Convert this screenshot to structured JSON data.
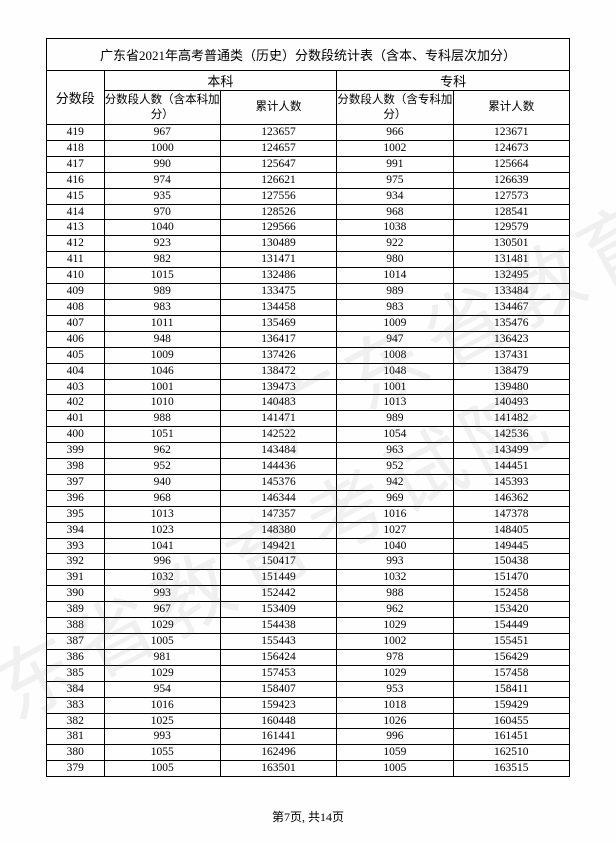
{
  "title": "广东省2021年高考普通类（历史）分数段统计表（含本、专科层次加分）",
  "headers": {
    "score": "分数段",
    "group_benke": "本科",
    "group_zhuanke": "专科",
    "benke_count": "分数段人数（含本科加分）",
    "benke_cum": "累计人数",
    "zhuanke_count": "分数段人数（含专科加分）",
    "zhuanke_cum": "累计人数"
  },
  "footer": "第7页, 共14页",
  "watermark": "广东省教育考试院",
  "colors": {
    "page_bg": "#fffefe",
    "border": "#000000",
    "text": "#000000",
    "watermark": "rgba(120,120,120,0.10)"
  },
  "table": {
    "type": "table",
    "col_widths_pct": [
      11,
      22.25,
      22.25,
      22.25,
      22.25
    ],
    "rows": [
      [
        "419",
        "967",
        "123657",
        "966",
        "123671"
      ],
      [
        "418",
        "1000",
        "124657",
        "1002",
        "124673"
      ],
      [
        "417",
        "990",
        "125647",
        "991",
        "125664"
      ],
      [
        "416",
        "974",
        "126621",
        "975",
        "126639"
      ],
      [
        "415",
        "935",
        "127556",
        "934",
        "127573"
      ],
      [
        "414",
        "970",
        "128526",
        "968",
        "128541"
      ],
      [
        "413",
        "1040",
        "129566",
        "1038",
        "129579"
      ],
      [
        "412",
        "923",
        "130489",
        "922",
        "130501"
      ],
      [
        "411",
        "982",
        "131471",
        "980",
        "131481"
      ],
      [
        "410",
        "1015",
        "132486",
        "1014",
        "132495"
      ],
      [
        "409",
        "989",
        "133475",
        "989",
        "133484"
      ],
      [
        "408",
        "983",
        "134458",
        "983",
        "134467"
      ],
      [
        "407",
        "1011",
        "135469",
        "1009",
        "135476"
      ],
      [
        "406",
        "948",
        "136417",
        "947",
        "136423"
      ],
      [
        "405",
        "1009",
        "137426",
        "1008",
        "137431"
      ],
      [
        "404",
        "1046",
        "138472",
        "1048",
        "138479"
      ],
      [
        "403",
        "1001",
        "139473",
        "1001",
        "139480"
      ],
      [
        "402",
        "1010",
        "140483",
        "1013",
        "140493"
      ],
      [
        "401",
        "988",
        "141471",
        "989",
        "141482"
      ],
      [
        "400",
        "1051",
        "142522",
        "1054",
        "142536"
      ],
      [
        "399",
        "962",
        "143484",
        "963",
        "143499"
      ],
      [
        "398",
        "952",
        "144436",
        "952",
        "144451"
      ],
      [
        "397",
        "940",
        "145376",
        "942",
        "145393"
      ],
      [
        "396",
        "968",
        "146344",
        "969",
        "146362"
      ],
      [
        "395",
        "1013",
        "147357",
        "1016",
        "147378"
      ],
      [
        "394",
        "1023",
        "148380",
        "1027",
        "148405"
      ],
      [
        "393",
        "1041",
        "149421",
        "1040",
        "149445"
      ],
      [
        "392",
        "996",
        "150417",
        "993",
        "150438"
      ],
      [
        "391",
        "1032",
        "151449",
        "1032",
        "151470"
      ],
      [
        "390",
        "993",
        "152442",
        "988",
        "152458"
      ],
      [
        "389",
        "967",
        "153409",
        "962",
        "153420"
      ],
      [
        "388",
        "1029",
        "154438",
        "1029",
        "154449"
      ],
      [
        "387",
        "1005",
        "155443",
        "1002",
        "155451"
      ],
      [
        "386",
        "981",
        "156424",
        "978",
        "156429"
      ],
      [
        "385",
        "1029",
        "157453",
        "1029",
        "157458"
      ],
      [
        "384",
        "954",
        "158407",
        "953",
        "158411"
      ],
      [
        "383",
        "1016",
        "159423",
        "1018",
        "159429"
      ],
      [
        "382",
        "1025",
        "160448",
        "1026",
        "160455"
      ],
      [
        "381",
        "993",
        "161441",
        "996",
        "161451"
      ],
      [
        "380",
        "1055",
        "162496",
        "1059",
        "162510"
      ],
      [
        "379",
        "1005",
        "163501",
        "1005",
        "163515"
      ]
    ]
  }
}
